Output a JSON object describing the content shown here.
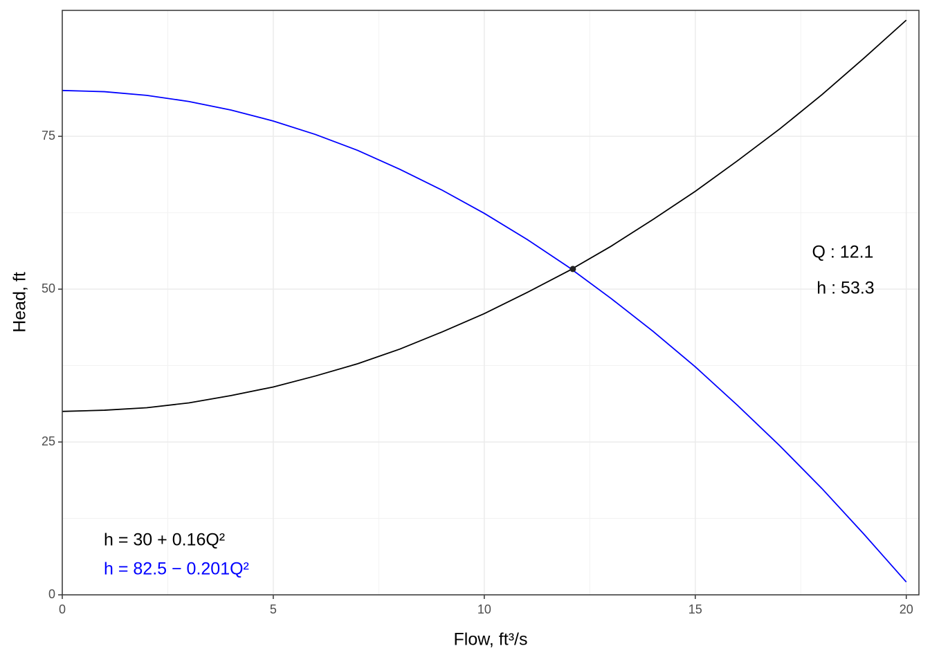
{
  "chart_data": {
    "type": "line",
    "x_label": "Flow, ft³/s",
    "y_label": "Head, ft",
    "x": [
      0,
      1,
      2,
      3,
      4,
      5,
      6,
      7,
      8,
      9,
      10,
      11,
      12,
      13,
      14,
      15,
      16,
      17,
      18,
      19,
      20
    ],
    "series": [
      {
        "name": "h = 30 + 0.16Q²",
        "color": "#000000",
        "values": [
          30,
          30.2,
          30.6,
          31.4,
          32.6,
          34,
          35.8,
          37.8,
          40.2,
          43,
          46,
          49.4,
          53,
          57,
          61.4,
          66,
          71,
          76.2,
          81.8,
          87.8,
          94
        ]
      },
      {
        "name": "h = 82.5 − 0.201Q²",
        "color": "#0000ff",
        "values": [
          82.5,
          82.3,
          81.7,
          80.7,
          79.3,
          77.5,
          75.3,
          72.7,
          69.6,
          66.2,
          62.4,
          58.2,
          53.6,
          48.5,
          43.1,
          37.3,
          31,
          24.4,
          17.4,
          9.9,
          2.1
        ]
      }
    ],
    "intersection": {
      "x": 12.1,
      "y": 53.3,
      "x_label": "Q : 12.1",
      "y_label": "h : 53.3"
    },
    "xlim": [
      0,
      20.3
    ],
    "ylim": [
      0,
      95.6
    ],
    "xticks": [
      0,
      5,
      10,
      15,
      20
    ],
    "yticks": [
      0,
      25,
      50,
      75
    ],
    "grid": true
  }
}
